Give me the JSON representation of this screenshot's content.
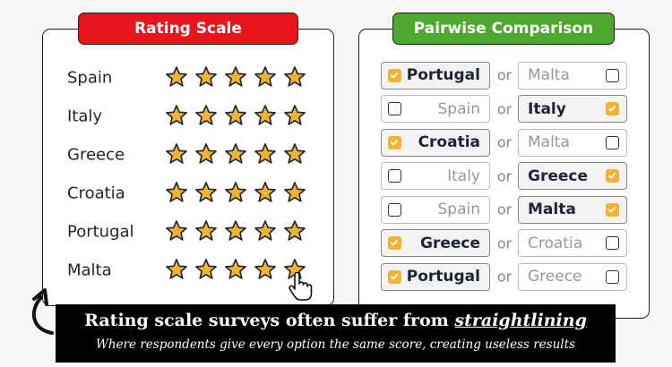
{
  "rating_scale": {
    "title": "Rating Scale",
    "items": [
      "Spain",
      "Italy",
      "Greece",
      "Croatia",
      "Portugal",
      "Malta"
    ]
  },
  "pairwise": {
    "title": "Pairwise Comparison",
    "separator": "or",
    "rows": [
      {
        "left": "Portugal",
        "right": "Malta",
        "selected": "left"
      },
      {
        "left": "Spain",
        "right": "Italy",
        "selected": "right"
      },
      {
        "left": "Croatia",
        "right": "Malta",
        "selected": "left"
      },
      {
        "left": "Italy",
        "right": "Greece",
        "selected": "right"
      },
      {
        "left": "Spain",
        "right": "Malta",
        "selected": "right"
      },
      {
        "left": "Greece",
        "right": "Croatia",
        "selected": "left"
      },
      {
        "left": "Portugal",
        "right": "Greece",
        "selected": "left"
      }
    ]
  },
  "caption": {
    "title": "Rating scale surveys often suffer from ",
    "title_emphasis": "straightlining",
    "subtitle": "Where respondents give every option the same score, creating useless results"
  }
}
